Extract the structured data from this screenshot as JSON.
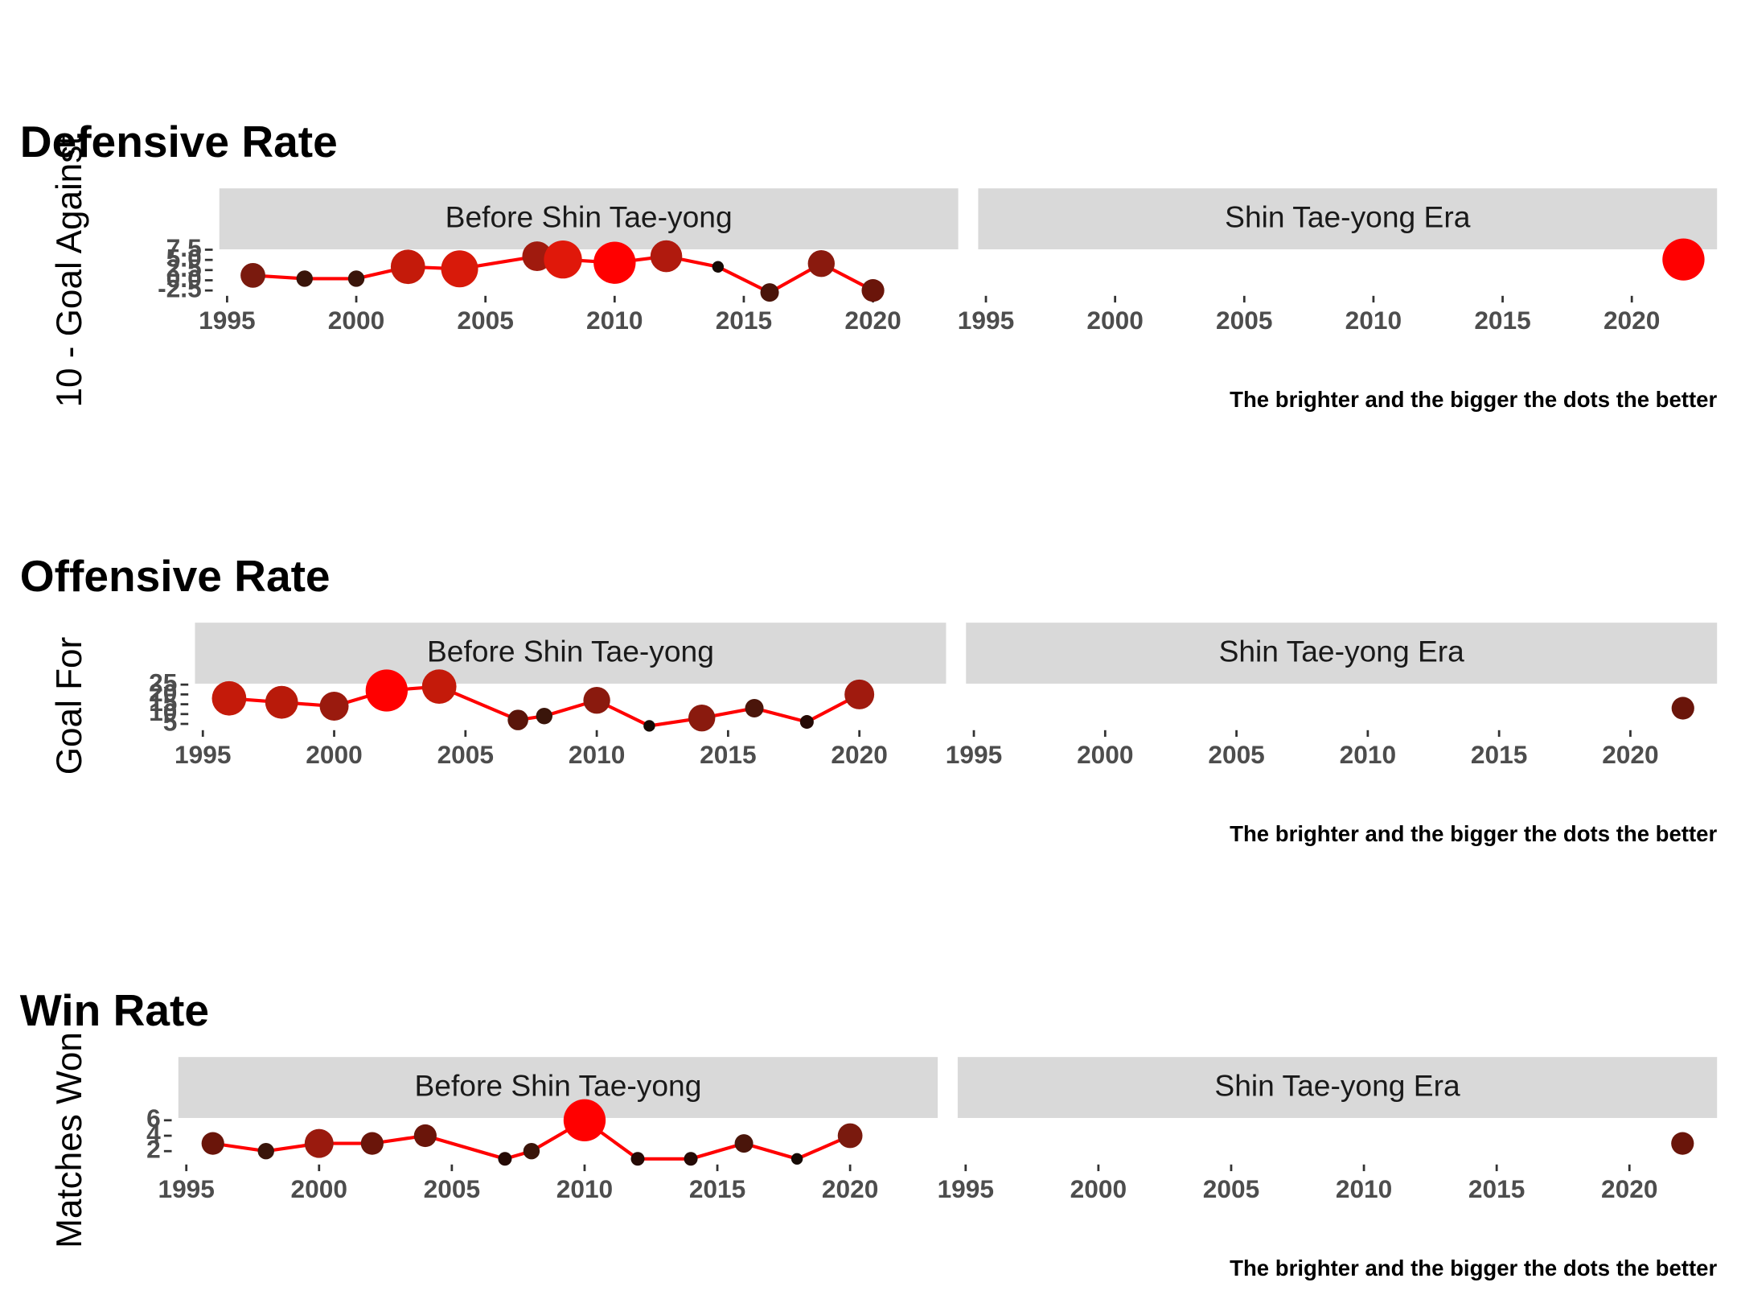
{
  "chart_data": [
    {
      "type": "line",
      "title": "Defensive Rate",
      "y_label": "10 - Goal Against",
      "caption": "The brighter and the bigger the dots the better",
      "line_color": "#ff0000",
      "xlim": [
        1994.7,
        2023.3
      ],
      "xticks": [
        1995,
        2000,
        2005,
        2010,
        2015,
        2020
      ],
      "ylim": [
        -3,
        7.6
      ],
      "yticks": [
        -2.5,
        {
          "value": 0,
          "label": "0.0"
        },
        2.5,
        {
          "value": 5,
          "label": "5.0"
        },
        7.5
      ],
      "facets": [
        {
          "label": "Before Shin Tae-yong",
          "x": [
            1996,
            1998,
            2000,
            2002,
            2004,
            2007,
            2008,
            2010,
            2012,
            2014,
            2016,
            2018,
            2020
          ],
          "values": [
            1.2,
            0.4,
            0.4,
            3.3,
            2.8,
            5.9,
            5.1,
            4.3,
            5.9,
            3.3,
            -3,
            4.1,
            -2.5
          ],
          "colors": [
            "#7a1a0e",
            "#3a150a",
            "#3a150a",
            "#c41a0a",
            "#d81a0a",
            "#a01a0e",
            "#e0180a",
            "#ff0000",
            "#b01a0e",
            "#150a05",
            "#4a150a",
            "#8a1a0e",
            "#6a150a"
          ]
        },
        {
          "label": "Shin Tae-yong Era",
          "x": [
            2022
          ],
          "values": [
            5.1
          ],
          "colors": [
            "#ff0000"
          ]
        }
      ]
    },
    {
      "type": "line",
      "title": "Offensive Rate",
      "y_label": "Goal For",
      "caption": "The brighter and the bigger the dots the better",
      "line_color": "#ff0000",
      "xlim": [
        1994.7,
        2023.3
      ],
      "xticks": [
        1995,
        2000,
        2005,
        2010,
        2015,
        2020
      ],
      "ylim": [
        3.5,
        25.5
      ],
      "yticks": [
        5,
        10,
        15,
        20,
        25
      ],
      "facets": [
        {
          "label": "Before Shin Tae-yong",
          "x": [
            1996,
            1998,
            2000,
            2002,
            2004,
            2007,
            2008,
            2010,
            2012,
            2014,
            2016,
            2018,
            2020
          ],
          "values": [
            18,
            16,
            14,
            22,
            24,
            7,
            9,
            17,
            4,
            8,
            13,
            6,
            20
          ],
          "colors": [
            "#c41a0a",
            "#b81a0a",
            "#9a1a0e",
            "#ff0000",
            "#c41a0a",
            "#5a150a",
            "#3a150a",
            "#8a1a0e",
            "#150a05",
            "#8a1a0e",
            "#4a150a",
            "#250a05",
            "#a01a0e"
          ]
        },
        {
          "label": "Shin Tae-yong Era",
          "x": [
            2022
          ],
          "values": [
            13
          ],
          "colors": [
            "#6a150a"
          ]
        }
      ]
    },
    {
      "type": "line",
      "title": "Win Rate",
      "y_label": "Matches Won",
      "caption": "The brighter and the bigger the dots the better",
      "line_color": "#ff0000",
      "xlim": [
        1994.7,
        2023.3
      ],
      "xticks": [
        1995,
        2000,
        2005,
        2010,
        2015,
        2020
      ],
      "ylim": [
        0.7,
        6.3
      ],
      "yticks": [
        2,
        4,
        6
      ],
      "facets": [
        {
          "label": "Before Shin Tae-yong",
          "x": [
            1996,
            1998,
            2000,
            2002,
            2004,
            2007,
            2008,
            2010,
            2012,
            2014,
            2016,
            2018,
            2020
          ],
          "values": [
            3,
            2,
            3,
            3,
            4,
            1,
            2,
            6,
            1,
            1,
            3,
            1,
            4
          ],
          "colors": [
            "#6a150a",
            "#3a150a",
            "#9a1a0e",
            "#6a150a",
            "#6a150a",
            "#250a05",
            "#3a150a",
            "#ff0000",
            "#250a05",
            "#250a05",
            "#4a150a",
            "#150a05",
            "#7a1a0e"
          ]
        },
        {
          "label": "Shin Tae-yong Era",
          "x": [
            2022
          ],
          "values": [
            3
          ],
          "colors": [
            "#6a150a"
          ]
        }
      ]
    }
  ]
}
